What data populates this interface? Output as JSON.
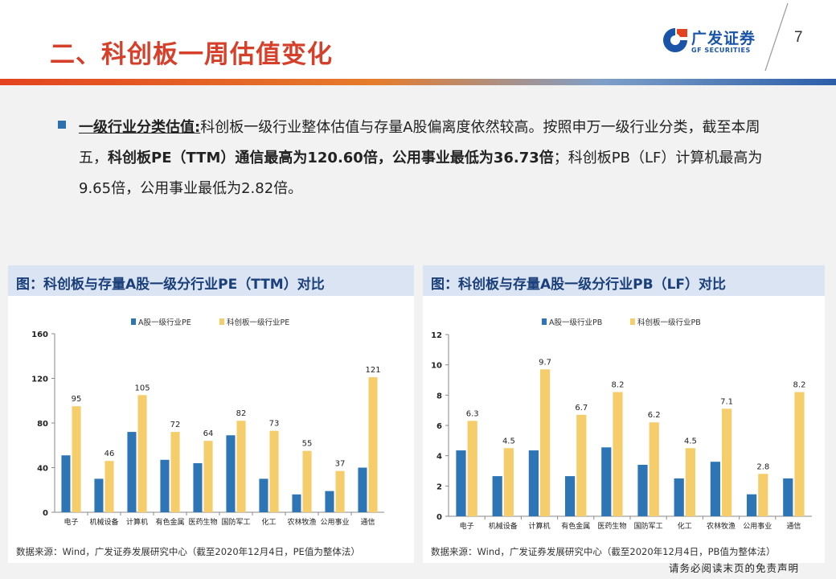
{
  "header": {
    "title": "二、科创板一周估值变化",
    "logo_cn": "广发证券",
    "logo_en": "GF SECURITIES",
    "page_number": "7",
    "colors": {
      "title": "#d6402b",
      "brand_blue": "#1a54a8",
      "brand_red": "#e3431f"
    }
  },
  "summary": {
    "lead": "一级行业分类估值:",
    "text1": "科创板一级行业整体估值与存量A股偏离度依然较高。按照申万一级行业分类，截至本周五，",
    "bold": "科创板PE（TTM）通信最高为120.60倍，公用事业最低为36.73倍",
    "text2": "；科创板PB（LF）计算机最高为9.65倍，公用事业最低为2.82倍。"
  },
  "panels": [
    {
      "title": "图：科创板与存量A股一级分行业PE（TTM）对比",
      "source": "数据来源：Wind，广发证券发展研究中心（截至2020年12月4日，PE值为整体法）"
    },
    {
      "title": "图：科创板与存量A股一级分行业PB（LF）对比",
      "source": "数据来源：Wind，广发证券发展研究中心（截至2020年12月4日，PB值为整体法）"
    }
  ],
  "chart_data": [
    {
      "type": "bar",
      "categories": [
        "电子",
        "机械设备",
        "计算机",
        "有色金属",
        "医药生物",
        "国防军工",
        "化工",
        "农林牧渔",
        "公用事业",
        "通信"
      ],
      "series": [
        {
          "name": "A股一级行业PE",
          "values": [
            51,
            30,
            72,
            47,
            44,
            69,
            30,
            16,
            19,
            40
          ],
          "color": "#2e75b6"
        },
        {
          "name": "科创板一级行业PE",
          "values": [
            95,
            46,
            105,
            72,
            64,
            82,
            73,
            55,
            37,
            121
          ],
          "labels": [
            "95",
            "46",
            "105",
            "72",
            "64",
            "82",
            "73",
            "55",
            "37",
            "121"
          ],
          "color": "#f6cd6b"
        }
      ],
      "ylim": [
        0,
        160
      ],
      "yticks": [
        0,
        40,
        80,
        120,
        160
      ],
      "legend": "top",
      "grid": false
    },
    {
      "type": "bar",
      "categories": [
        "电子",
        "机械设备",
        "计算机",
        "有色金属",
        "医药生物",
        "国防军工",
        "化工",
        "农林牧渔",
        "公用事业",
        "通信"
      ],
      "series": [
        {
          "name": "A股一级行业PB",
          "values": [
            4.35,
            2.65,
            4.35,
            2.65,
            4.55,
            3.4,
            2.5,
            3.6,
            1.45,
            2.5
          ],
          "color": "#2e75b6"
        },
        {
          "name": "科创板一级行业PB",
          "values": [
            6.3,
            4.5,
            9.7,
            6.7,
            8.2,
            6.2,
            4.5,
            7.1,
            2.8,
            8.2
          ],
          "labels": [
            "6.3",
            "4.5",
            "9.7",
            "6.7",
            "8.2",
            "6.2",
            "4.5",
            "7.1",
            "2.8",
            "8.2"
          ],
          "color": "#f6cd6b"
        }
      ],
      "ylim": [
        0,
        12
      ],
      "yticks": [
        0,
        2,
        4,
        6,
        8,
        10,
        12
      ],
      "legend": "top",
      "grid": false
    }
  ],
  "footer": {
    "disclaimer": "请务必阅读末页的免责声明"
  }
}
